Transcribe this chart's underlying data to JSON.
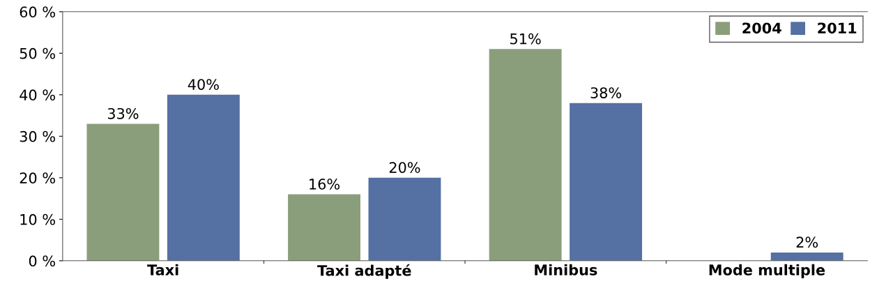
{
  "chart_data": {
    "type": "bar",
    "categories": [
      "Taxi",
      "Taxi adapté",
      "Minibus",
      "Mode multiple"
    ],
    "series": [
      {
        "name": "2004",
        "color": "#8a9e7b",
        "values": [
          33,
          16,
          51,
          null
        ],
        "value_labels": [
          "33%",
          "16%",
          "51%",
          null
        ]
      },
      {
        "name": "2011",
        "color": "#5570a3",
        "values": [
          40,
          20,
          38,
          2
        ],
        "value_labels": [
          "40%",
          "20%",
          "38%",
          "2%"
        ]
      }
    ],
    "ylim": [
      0,
      60
    ],
    "yticks": [
      {
        "value": 0,
        "label": "0 %"
      },
      {
        "value": 10,
        "label": "10 %"
      },
      {
        "value": 20,
        "label": "20 %"
      },
      {
        "value": 30,
        "label": "30 %"
      },
      {
        "value": 40,
        "label": "40 %"
      },
      {
        "value": 50,
        "label": "50 %"
      },
      {
        "value": 60,
        "label": "60 %"
      }
    ],
    "grid": false,
    "legend": "top right"
  }
}
